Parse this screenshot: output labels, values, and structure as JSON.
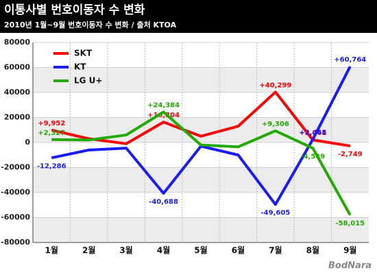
{
  "chart_data": {
    "type": "line",
    "title": "이통사별 번호이동자 수 변화",
    "subtitle": "2010년 1월~9월 번호이동자 수 변화 / 출처 KTOA",
    "watermark": "BodNara",
    "categories": [
      "1월",
      "2월",
      "3월",
      "4월",
      "5월",
      "6월",
      "7월",
      "8월",
      "9월"
    ],
    "series": [
      {
        "name": "SKT",
        "color": "#ff0000",
        "values": [
          9952,
          3000,
          -1000,
          16304,
          5000,
          13000,
          40299,
          2061,
          -2749
        ],
        "value_labels": [
          "+9,952",
          null,
          null,
          "+16,304",
          null,
          null,
          "+40,299",
          "+2,061",
          "-2,749"
        ]
      },
      {
        "name": "KT",
        "color": "#1a1aff",
        "values": [
          -12286,
          -6000,
          -4500,
          -40688,
          -3000,
          -10000,
          -49605,
          2448,
          60764
        ],
        "value_labels": [
          "-12,286",
          null,
          null,
          "-40,688",
          null,
          null,
          "-49,605",
          "+2,448",
          "+60,764"
        ]
      },
      {
        "name": "LG U+",
        "color": "#22aa00",
        "values": [
          2327,
          2000,
          6000,
          24384,
          -2000,
          -3500,
          9306,
          -4549,
          -58015
        ],
        "value_labels": [
          "+2,327",
          null,
          null,
          "+24,384",
          null,
          null,
          "+9,306",
          "-4,549",
          "-58,015"
        ]
      }
    ],
    "ylim": [
      -80000,
      80000
    ],
    "yticks": [
      -80000,
      -60000,
      -40000,
      -20000,
      0,
      20000,
      40000,
      60000,
      80000
    ],
    "grid": true,
    "legend": "top-left"
  }
}
